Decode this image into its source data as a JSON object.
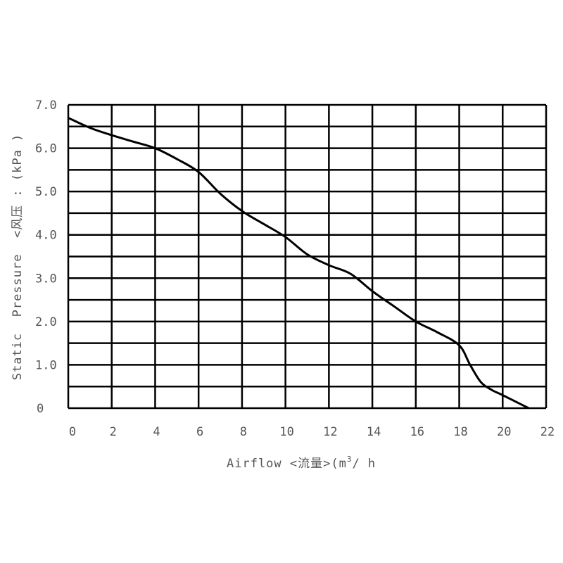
{
  "chart_data": {
    "type": "line",
    "xlabel": "Airflow <流量>(m³/h",
    "xlabel_parts": {
      "main": "Airflow <流量>(m",
      "sup": "3",
      "tail": "/ h"
    },
    "ylabel": "Static  Pressure  <风压 : (kPa )",
    "xlim": [
      0,
      22
    ],
    "ylim": [
      0,
      7
    ],
    "x_ticks": [
      0,
      2,
      4,
      6,
      8,
      10,
      12,
      14,
      16,
      18,
      20,
      22
    ],
    "x_tick_labels": [
      "0",
      "2",
      "4",
      "6",
      "8",
      "10",
      "12",
      "14",
      "16",
      "18",
      "20",
      "22"
    ],
    "y_ticks": [
      0,
      1,
      2,
      3,
      4,
      5,
      6,
      7
    ],
    "y_tick_labels": [
      "0",
      "1.0",
      "2.0",
      "3.0",
      "4.0",
      "5.0",
      "6.0",
      "7.0"
    ],
    "grid": true,
    "grid_x_step": 2,
    "grid_y_step": 0.5,
    "line_color": "#000000",
    "series": [
      {
        "x": [
          0,
          1,
          2,
          3,
          4,
          5,
          6,
          7,
          8,
          9,
          10,
          11,
          12,
          13,
          14,
          15,
          16,
          17,
          18,
          18.5,
          19,
          19.5,
          20,
          21,
          21.2
        ],
        "y": [
          6.7,
          6.47,
          6.3,
          6.15,
          6.0,
          5.75,
          5.45,
          4.95,
          4.55,
          4.25,
          3.95,
          3.55,
          3.3,
          3.1,
          2.7,
          2.35,
          2.0,
          1.75,
          1.45,
          1.0,
          0.6,
          0.42,
          0.3,
          0.05,
          0
        ]
      }
    ]
  }
}
